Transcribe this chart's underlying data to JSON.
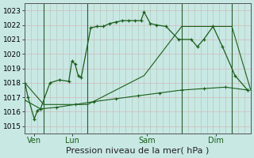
{
  "background_color": "#c8e8e4",
  "grid_color_h": "#d4b8b8",
  "grid_color_v": "#b8c8b8",
  "line_color": "#1a5e1a",
  "xlabel": "Pression niveau de la mer( hPa )",
  "xlabel_fontsize": 8,
  "xlabel_color": "#222222",
  "ylim": [
    1014.5,
    1023.5
  ],
  "ytick_vals": [
    1015,
    1016,
    1017,
    1018,
    1019,
    1020,
    1021,
    1022,
    1023
  ],
  "ytick_fontsize": 6.5,
  "xtick_fontsize": 7,
  "xtick_color": "#1a5e1a",
  "xlim": [
    0,
    36
  ],
  "day_positions": [
    1.5,
    7.5,
    19.5,
    30.5
  ],
  "day_labels": [
    "Ven",
    "Lun",
    "Sam",
    "Dim"
  ],
  "vline_positions": [
    3,
    10,
    25,
    33
  ],
  "line1_x": [
    0,
    0.5,
    1.5,
    2.0,
    2.5,
    4.0,
    5.5,
    7.0,
    7.5,
    8.0,
    8.5,
    9.0,
    10.5,
    11.5,
    12.5,
    13.5,
    14.5,
    15.5,
    16.5,
    17.5,
    18.5,
    19.0,
    20.0,
    21.0,
    22.5,
    24.5,
    26.5,
    27.5,
    28.5,
    30.0,
    31.5,
    33.5,
    35.5
  ],
  "line1_y": [
    1018.0,
    1017.0,
    1015.5,
    1016.1,
    1016.2,
    1018.0,
    1018.2,
    1018.1,
    1019.5,
    1019.3,
    1018.5,
    1018.4,
    1021.8,
    1021.9,
    1021.9,
    1022.1,
    1022.2,
    1022.3,
    1022.3,
    1022.3,
    1022.3,
    1022.9,
    1022.1,
    1022.0,
    1021.9,
    1021.0,
    1021.0,
    1020.5,
    1021.0,
    1021.9,
    1020.5,
    1018.5,
    1017.5
  ],
  "line2_x": [
    0,
    3,
    10,
    19,
    25,
    33,
    36
  ],
  "line2_y": [
    1018.0,
    1016.5,
    1016.5,
    1018.5,
    1021.9,
    1021.9,
    1017.5
  ],
  "line3_x": [
    0,
    2.5,
    5.0,
    8.0,
    11.0,
    14.5,
    18.0,
    21.5,
    25.0,
    28.5,
    32.0,
    35.5
  ],
  "line3_y": [
    1016.8,
    1016.2,
    1016.3,
    1016.5,
    1016.7,
    1016.9,
    1017.1,
    1017.3,
    1017.5,
    1017.6,
    1017.7,
    1017.5
  ]
}
